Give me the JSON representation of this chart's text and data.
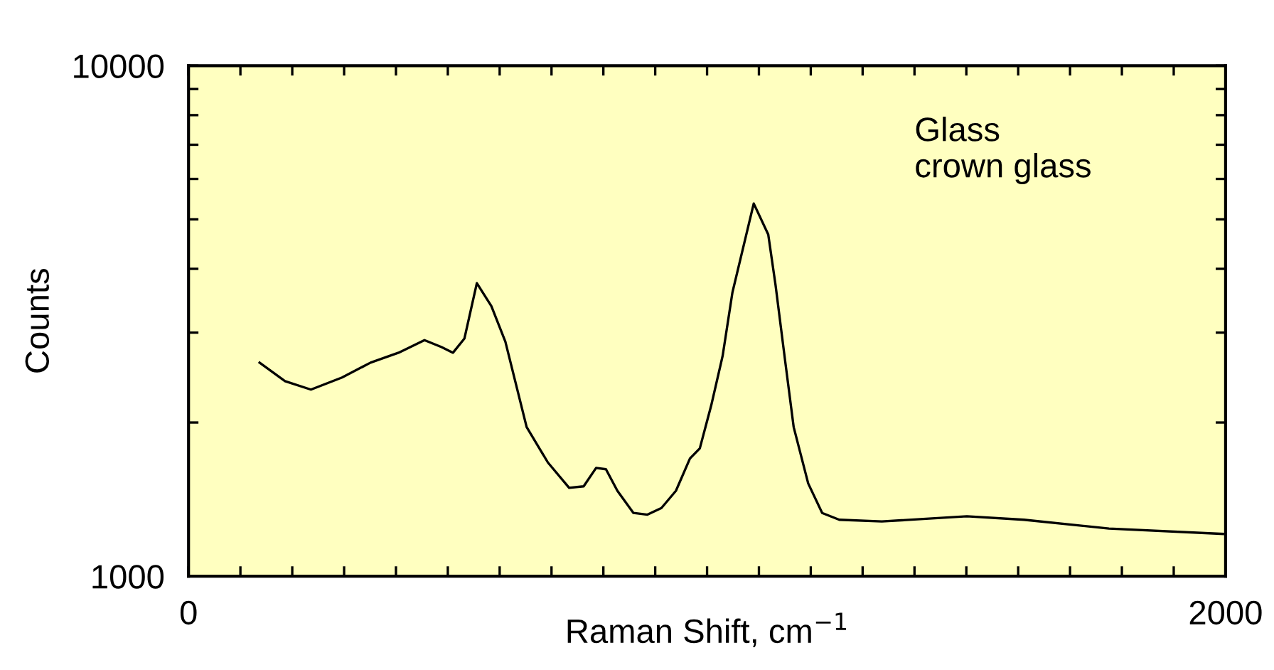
{
  "chart_data": {
    "type": "line",
    "xlabel": "Raman Shift, cm$^{−1}$",
    "ylabel": "Counts",
    "annotations": [
      "Glass\ncrown glass"
    ],
    "log": "y",
    "xlim": [
      0,
      2000
    ],
    "ylim": [
      1000,
      10000
    ],
    "xticks": [
      0,
      {
        "value": 100,
        "label": null
      },
      {
        "value": 200,
        "label": null
      },
      {
        "value": 300,
        "label": null
      },
      {
        "value": 400,
        "label": null
      },
      {
        "value": 500,
        "label": null
      },
      {
        "value": 600,
        "label": null
      },
      {
        "value": 700,
        "label": null
      },
      {
        "value": 800,
        "label": null
      },
      {
        "value": 900,
        "label": null
      },
      {
        "value": 1000,
        "label": null
      },
      {
        "value": 1100,
        "label": null
      },
      {
        "value": 1200,
        "label": null
      },
      {
        "value": 1300,
        "label": null
      },
      {
        "value": 1400,
        "label": null
      },
      {
        "value": 1500,
        "label": null
      },
      {
        "value": 1600,
        "label": null
      },
      {
        "value": 1700,
        "label": null
      },
      {
        "value": 1800,
        "label": null
      },
      {
        "value": 1900,
        "label": null
      },
      2000
    ],
    "yticks": [
      1000,
      {
        "value": 2000,
        "label": null
      },
      {
        "value": 3000,
        "label": null
      },
      {
        "value": 4000,
        "label": null
      },
      {
        "value": 5000,
        "label": null
      },
      {
        "value": 6000,
        "label": null
      },
      {
        "value": 7000,
        "label": null
      },
      {
        "value": 8000,
        "label": null
      },
      {
        "value": 9000,
        "label": null
      },
      10000
    ],
    "grid": false,
    "legend": false,
    "marker": "none",
    "line_style": "solid",
    "series": [
      {
        "color": "#000000",
        "x": [
          137,
          186,
          236,
          296,
          351,
          405,
          455,
          488,
          510,
          532,
          556,
          584,
          611,
          652,
          693,
          734,
          762,
          786,
          805,
          827,
          858,
          885,
          912,
          940,
          967,
          986,
          1008,
          1030,
          1049,
          1090,
          1118,
          1132,
          1151,
          1167,
          1195,
          1222,
          1255,
          1337,
          1501,
          1611,
          1775,
          1995
        ],
        "values": [
          2620,
          2410,
          2320,
          2450,
          2620,
          2740,
          2900,
          2810,
          2740,
          2920,
          3750,
          3380,
          2880,
          1960,
          1670,
          1490,
          1500,
          1630,
          1620,
          1470,
          1330,
          1320,
          1360,
          1470,
          1700,
          1780,
          2160,
          2700,
          3600,
          5370,
          4670,
          3720,
          2620,
          1960,
          1520,
          1330,
          1290,
          1280,
          1310,
          1290,
          1240,
          1210
        ]
      }
    ]
  }
}
